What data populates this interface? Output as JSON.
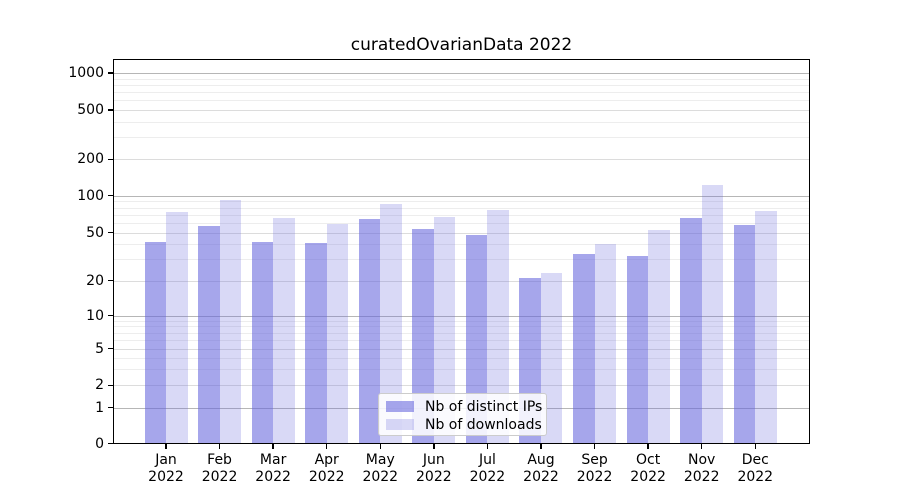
{
  "chart_data": {
    "type": "bar",
    "title": "curatedOvarianData 2022",
    "categories": [
      "Jan 2022",
      "Feb 2022",
      "Mar 2022",
      "Apr 2022",
      "May 2022",
      "Jun 2022",
      "Jul 2022",
      "Aug 2022",
      "Sep 2022",
      "Oct 2022",
      "Nov 2022",
      "Dec 2022"
    ],
    "series": [
      {
        "name": "Nb of distinct IPs",
        "values": [
          42,
          56,
          42,
          41,
          65,
          53,
          48,
          21,
          33,
          32,
          66,
          58
        ]
      },
      {
        "name": "Nb of downloads",
        "values": [
          74,
          93,
          66,
          59,
          86,
          67,
          77,
          23,
          40,
          52,
          123,
          75
        ]
      }
    ],
    "xlabel": "",
    "ylabel": "",
    "yscale": "symlog",
    "yticks": [
      0,
      1,
      2,
      5,
      10,
      20,
      50,
      100,
      200,
      500,
      1000
    ],
    "ylim": [
      0,
      1300
    ],
    "grid": "major-and-minor",
    "legend_position": "lower center"
  },
  "colors": {
    "ips_fill": "rgba(102,102,221,0.58)",
    "downloads_fill": "rgba(102,102,221,0.25)",
    "grid_decade": "#b6b6b6",
    "grid_mid": "#dcdcdc",
    "grid_minor": "#ededed",
    "axis": "#000000",
    "legend_border": "#cccccc"
  }
}
